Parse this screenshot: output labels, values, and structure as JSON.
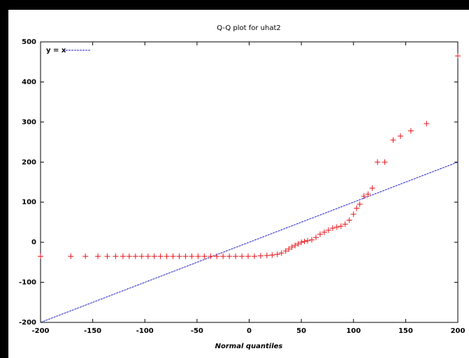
{
  "chart_data": {
    "type": "scatter",
    "title": "Q-Q plot for uhat2",
    "xlabel": "Normal quantiles",
    "xlim": [
      -200,
      200
    ],
    "ylim": [
      -200,
      500
    ],
    "xticks": [
      -200,
      -150,
      -100,
      -50,
      0,
      50,
      100,
      150,
      200
    ],
    "yticks": [
      -200,
      -100,
      0,
      100,
      200,
      300,
      400,
      500
    ],
    "series": [
      {
        "color": "#e8141b",
        "x": [
          -200,
          -171,
          -157,
          -145,
          -136,
          -128,
          -121,
          -115,
          -109,
          -103,
          -97,
          -91,
          -85,
          -79,
          -73,
          -67,
          -61,
          -55,
          -49,
          -43,
          -37,
          -31,
          -25,
          -19,
          -13,
          -7,
          -1,
          5,
          11,
          17,
          22,
          27,
          31,
          35,
          38,
          41,
          44,
          47,
          50,
          53,
          56,
          60,
          64,
          68,
          72,
          76,
          80,
          84,
          88,
          92,
          96,
          100,
          103,
          106,
          110,
          114,
          118,
          123,
          130,
          138,
          145,
          155,
          170,
          200
        ],
        "values": [
          -35,
          -35,
          -35,
          -35,
          -35,
          -35,
          -35,
          -35,
          -35,
          -35,
          -35,
          -35,
          -35,
          -35,
          -35,
          -35,
          -35,
          -35,
          -35,
          -35,
          -35,
          -35,
          -35,
          -35,
          -35,
          -35,
          -35,
          -35,
          -34,
          -33,
          -32,
          -30,
          -27,
          -22,
          -17,
          -12,
          -8,
          -4,
          0,
          2,
          4,
          6,
          12,
          20,
          25,
          30,
          35,
          38,
          40,
          45,
          55,
          70,
          85,
          95,
          115,
          120,
          135,
          200,
          200,
          255,
          265,
          278,
          296,
          465
        ]
      }
    ],
    "reference_line": {
      "name": "y = x",
      "color": "#2020c0",
      "x": [
        -200,
        200
      ],
      "values": [
        -200,
        200
      ]
    }
  }
}
